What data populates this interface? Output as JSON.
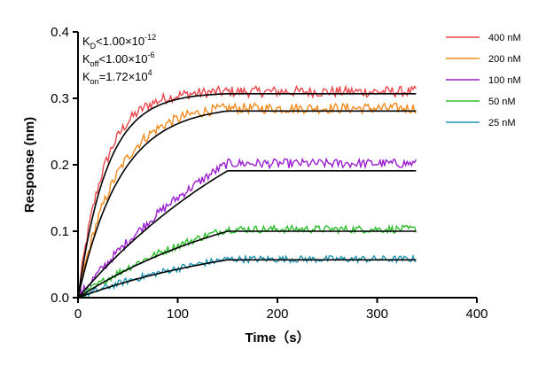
{
  "chart_data": {
    "type": "line",
    "title": "",
    "xlabel": "Time（s）",
    "ylabel": "Response (nm)",
    "xlim": [
      0,
      400
    ],
    "ylim": [
      0,
      0.4
    ],
    "xticks": [
      0,
      100,
      200,
      300,
      400
    ],
    "yticks": [
      0.0,
      0.1,
      0.2,
      0.3,
      0.4
    ],
    "xtick_labels": [
      "0",
      "100",
      "200",
      "300",
      "400"
    ],
    "ytick_labels": [
      "0.0",
      "0.1",
      "0.2",
      "0.3",
      "0.4"
    ],
    "grid": false,
    "legend_position": "top-right",
    "annotations": {
      "kd": {
        "symbol": "K",
        "sub": "D",
        "rel": "<",
        "mantissa": "1.00×10",
        "exp": "-12"
      },
      "koff": {
        "symbol": "K",
        "sub": "off",
        "rel": "<",
        "mantissa": "1.00×10",
        "exp": "-6"
      },
      "kon": {
        "symbol": "K",
        "sub": "on",
        "rel": "=",
        "mantissa": "1.72×10",
        "exp": "4"
      }
    },
    "association_end": 150,
    "time_end": 340,
    "series": [
      {
        "name": "400 nM",
        "color": "#e8474c",
        "plateau": 0.31,
        "fit_plateau": 0.307,
        "shape": 1.9
      },
      {
        "name": "200 nM",
        "color": "#f28a1c",
        "plateau": 0.285,
        "fit_plateau": 0.281,
        "shape": 1.3
      },
      {
        "name": "100 nM",
        "color": "#9b1fcf",
        "plateau": 0.202,
        "fit_plateau": 0.191,
        "shape": 0.25
      },
      {
        "name": "50 nM",
        "color": "#2bbd2b",
        "plateau": 0.103,
        "fit_plateau": 0.1,
        "shape": 0.3
      },
      {
        "name": "25 nM",
        "color": "#2198b8",
        "plateau": 0.058,
        "fit_plateau": 0.057,
        "shape": 0.3
      }
    ],
    "fit_color": "#000000"
  }
}
